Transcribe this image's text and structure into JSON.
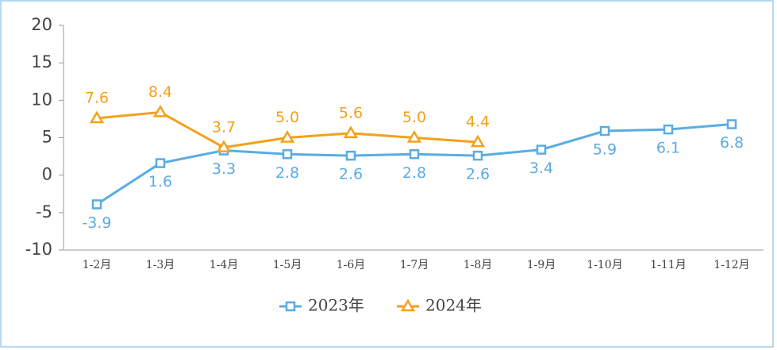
{
  "chart_data": {
    "type": "line",
    "categories": [
      "1-2月",
      "1-3月",
      "1-4月",
      "1-5月",
      "1-6月",
      "1-7月",
      "1-8月",
      "1-9月",
      "1-10月",
      "1-11月",
      "1-12月"
    ],
    "series": [
      {
        "name": "2023年",
        "color": "#5aace3",
        "marker": "square",
        "values": [
          -3.9,
          1.6,
          3.3,
          2.8,
          2.6,
          2.8,
          2.6,
          3.4,
          5.9,
          6.1,
          6.8
        ],
        "value_labels": [
          "-3.9",
          "1.6",
          "3.3",
          "2.8",
          "2.6",
          "2.8",
          "2.6",
          "3.4",
          "5.9",
          "6.1",
          "6.8"
        ]
      },
      {
        "name": "2024年",
        "color": "#f4a11a",
        "marker": "triangle",
        "values": [
          7.6,
          8.4,
          3.7,
          5,
          5.6,
          5,
          4.4,
          null,
          null,
          null,
          null
        ],
        "value_labels": [
          "7.6",
          "8.4",
          "3.7",
          "5.0",
          "5.6",
          "5.0",
          "4.4",
          null,
          null,
          null,
          null
        ]
      }
    ],
    "ylim": [
      -10,
      20
    ],
    "yticks": [
      -10,
      -5,
      0,
      5,
      10,
      15,
      20
    ],
    "legend": "bottom"
  }
}
